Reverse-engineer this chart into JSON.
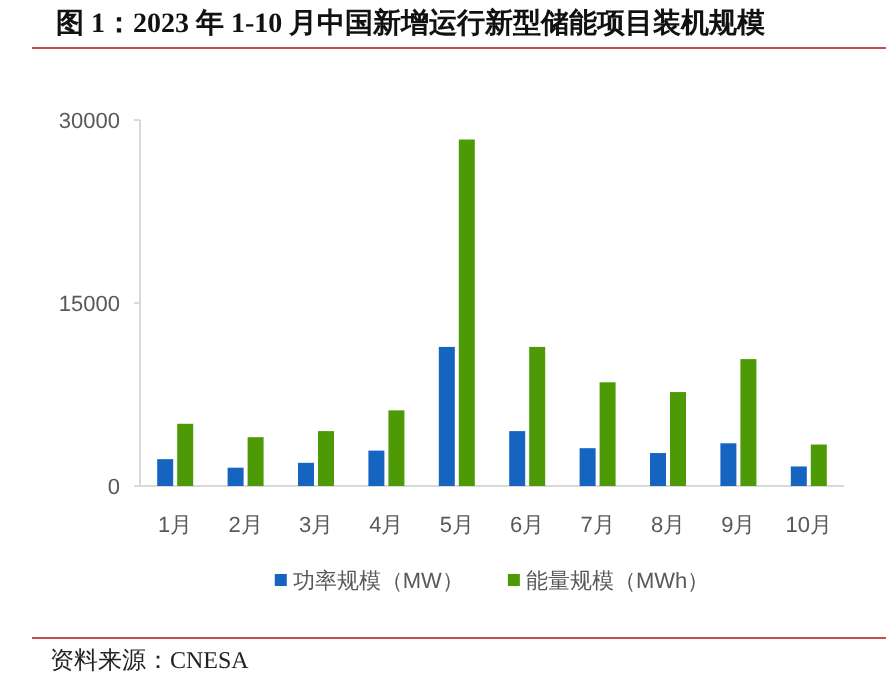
{
  "chart_data": {
    "type": "bar",
    "title": "图 1：2023 年 1-10 月中国新增运行新型储能项目装机规模",
    "categories": [
      "1月",
      "2月",
      "3月",
      "4月",
      "5月",
      "6月",
      "7月",
      "8月",
      "9月",
      "10月"
    ],
    "series": [
      {
        "name": "功率规模（MW）",
        "color": "#1565c0",
        "values": [
          2200,
          1500,
          1900,
          2900,
          11400,
          4500,
          3100,
          2700,
          3500,
          1600
        ]
      },
      {
        "name": "能量规模（MWh）",
        "color": "#4e9a06",
        "values": [
          5100,
          4000,
          4500,
          6200,
          28400,
          11400,
          8500,
          7700,
          10400,
          3400
        ]
      }
    ],
    "ylim": [
      0,
      30000
    ],
    "yticks": [
      0,
      15000,
      30000
    ],
    "grid": false,
    "legend": "bottom",
    "annotations": [
      "资料来源：CNESA"
    ]
  }
}
